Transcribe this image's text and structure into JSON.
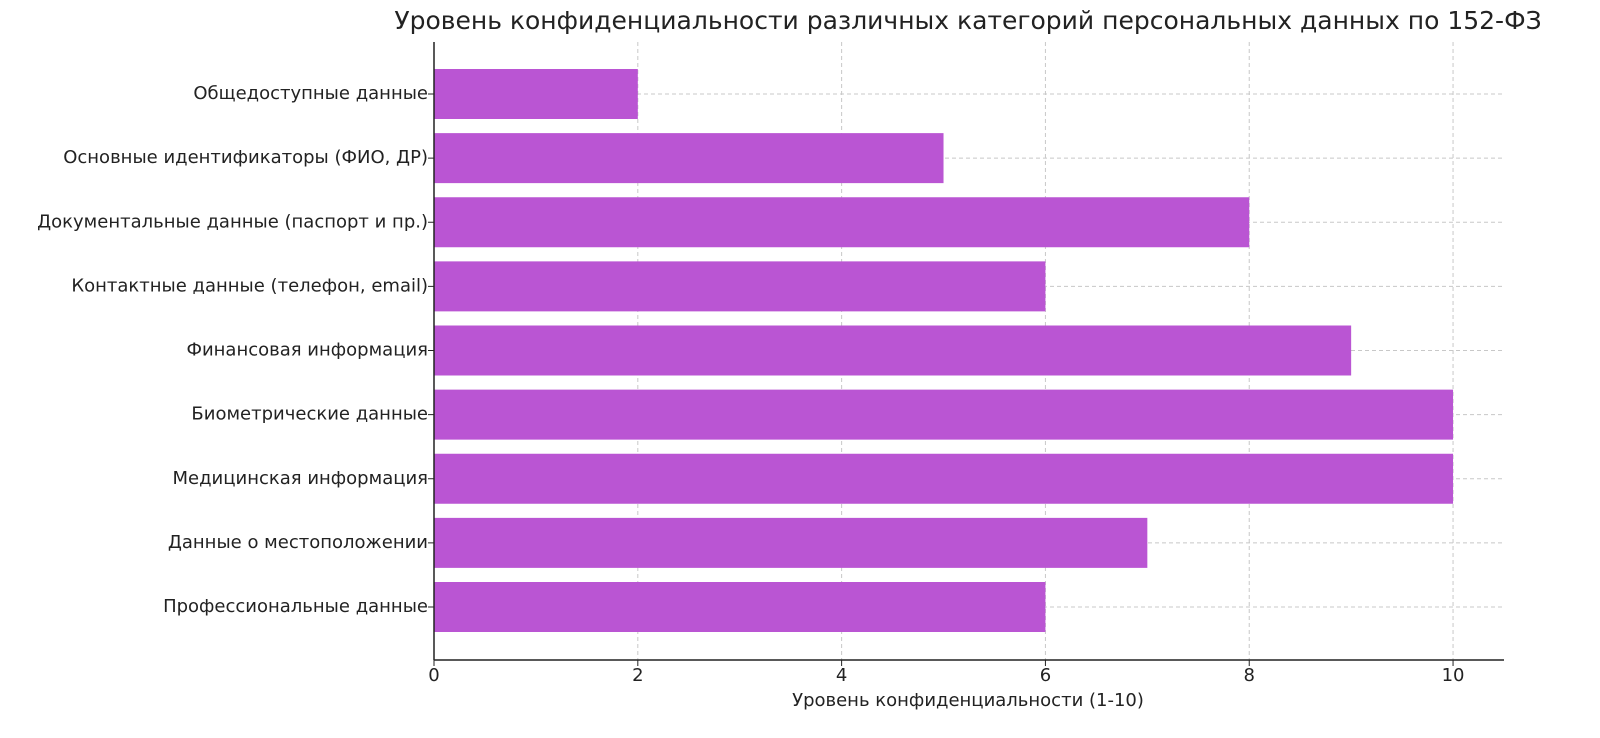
{
  "chart_data": {
    "type": "bar",
    "orientation": "horizontal",
    "title": "Уровень конфиденциальности различных категорий персональных данных по 152-ФЗ",
    "x_label": "Уровень конфиденциальности (1-10)",
    "categories": [
      "Общедоступные данные",
      "Основные идентификаторы (ФИО, ДР)",
      "Документальные данные (паспорт и пр.)",
      "Контактные данные (телефон, email)",
      "Финансовая информация",
      "Биометрические данные",
      "Медицинская информация",
      "Данные о местоположении",
      "Профессиональные данные"
    ],
    "values": [
      2,
      5,
      8,
      6,
      9,
      10,
      10,
      7,
      6
    ],
    "color": "#ba55d3",
    "xlim": [
      0,
      10.5
    ],
    "xticks": [
      0,
      2,
      4,
      6,
      8,
      10
    ],
    "grid": true
  }
}
